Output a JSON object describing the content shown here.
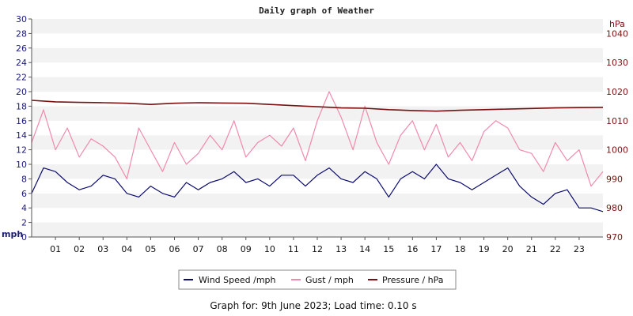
{
  "chart_data": {
    "type": "line",
    "title": "Daily graph of Weather",
    "left_axis": {
      "unit": "mph",
      "ylim": [
        0,
        30
      ],
      "ticks": [
        "0",
        "2",
        "4",
        "6",
        "8",
        "10",
        "12",
        "14",
        "16",
        "18",
        "20",
        "22",
        "24",
        "26",
        "28",
        "30"
      ]
    },
    "right_axis": {
      "unit": "hPa",
      "ylim": [
        970,
        1045
      ],
      "ticks": [
        "970",
        "980",
        "990",
        "1000",
        "1010",
        "1020",
        "1030",
        "1040"
      ]
    },
    "x_axis": {
      "xlim": [
        0,
        24
      ],
      "ticks": [
        "01",
        "02",
        "03",
        "04",
        "05",
        "06",
        "07",
        "08",
        "09",
        "10",
        "11",
        "12",
        "13",
        "14",
        "15",
        "16",
        "17",
        "18",
        "19",
        "20",
        "21",
        "22",
        "23"
      ]
    },
    "grid": "horizontal bands",
    "legend_position": "bottom",
    "series": [
      {
        "name": "Wind Speed /mph",
        "axis": "left",
        "color": "#0b0b6e",
        "x": [
          0,
          0.5,
          1,
          1.5,
          2,
          2.5,
          3,
          3.5,
          4,
          4.5,
          5,
          5.5,
          6,
          6.5,
          7,
          7.5,
          8,
          8.5,
          9,
          9.5,
          10,
          10.5,
          11,
          11.5,
          12,
          12.5,
          13,
          13.5,
          14,
          14.5,
          15,
          15.5,
          16,
          16.5,
          17,
          17.5,
          18,
          18.5,
          19,
          19.5,
          20,
          20.5,
          21,
          21.5,
          22,
          22.5,
          23,
          23.5,
          24
        ],
        "values": [
          6,
          9.5,
          9,
          7.5,
          6.5,
          7,
          8.5,
          8,
          6,
          5.5,
          7,
          6,
          5.5,
          7.5,
          6.5,
          7.5,
          8,
          9,
          7.5,
          8,
          7,
          8.5,
          8.5,
          7,
          8.5,
          9.5,
          8,
          7.5,
          9,
          8,
          5.5,
          8,
          9,
          8,
          10,
          8,
          7.5,
          6.5,
          7.5,
          8.5,
          9.5,
          7,
          5.5,
          4.5,
          6,
          6.5,
          4,
          4,
          3.5
        ]
      },
      {
        "name": "Gust / mph",
        "axis": "left",
        "color": "#f08aaa",
        "x": [
          0,
          0.5,
          1,
          1.5,
          2,
          2.5,
          3,
          3.5,
          4,
          4.5,
          5,
          5.5,
          6,
          6.5,
          7,
          7.5,
          8,
          8.5,
          9,
          9.5,
          10,
          10.5,
          11,
          11.5,
          12,
          12.5,
          13,
          13.5,
          14,
          14.5,
          15,
          15.5,
          16,
          16.5,
          17,
          17.5,
          18,
          18.5,
          19,
          19.5,
          20,
          20.5,
          21,
          21.5,
          22,
          22.5,
          23,
          23.5,
          24
        ],
        "values": [
          13,
          17.5,
          12,
          15,
          11,
          13.5,
          12.5,
          11,
          8,
          15,
          12,
          9,
          13,
          10,
          11.5,
          14,
          12,
          16,
          11,
          13,
          14,
          12.5,
          15,
          10.5,
          16,
          20,
          16.5,
          12,
          18,
          13,
          10,
          14,
          16,
          12,
          15.5,
          11,
          13,
          10.5,
          14.5,
          16,
          15,
          12,
          11.5,
          9,
          13,
          10.5,
          12,
          7,
          9
        ]
      },
      {
        "name": "Pressure / hPa",
        "axis": "right",
        "color": "#7a0f0f",
        "x": [
          0,
          1,
          2,
          3,
          4,
          5,
          6,
          7,
          8,
          9,
          10,
          11,
          12,
          13,
          14,
          15,
          16,
          17,
          18,
          19,
          20,
          21,
          22,
          23,
          24
        ],
        "values": [
          1017,
          1016.5,
          1016.3,
          1016.2,
          1016,
          1015.6,
          1016,
          1016.2,
          1016.1,
          1016,
          1015.6,
          1015.2,
          1014.8,
          1014.4,
          1014.3,
          1013.8,
          1013.5,
          1013.3,
          1013.6,
          1013.8,
          1014,
          1014.2,
          1014.4,
          1014.5,
          1014.6
        ]
      }
    ]
  },
  "legend": [
    {
      "label": "Wind Speed /mph",
      "color": "#0b0b6e"
    },
    {
      "label": "Gust / mph",
      "color": "#f08aaa"
    },
    {
      "label": "Pressure / hPa",
      "color": "#7a0f0f"
    }
  ],
  "footer": "Graph for: 9th June 2023; Load time: 0.10 s"
}
